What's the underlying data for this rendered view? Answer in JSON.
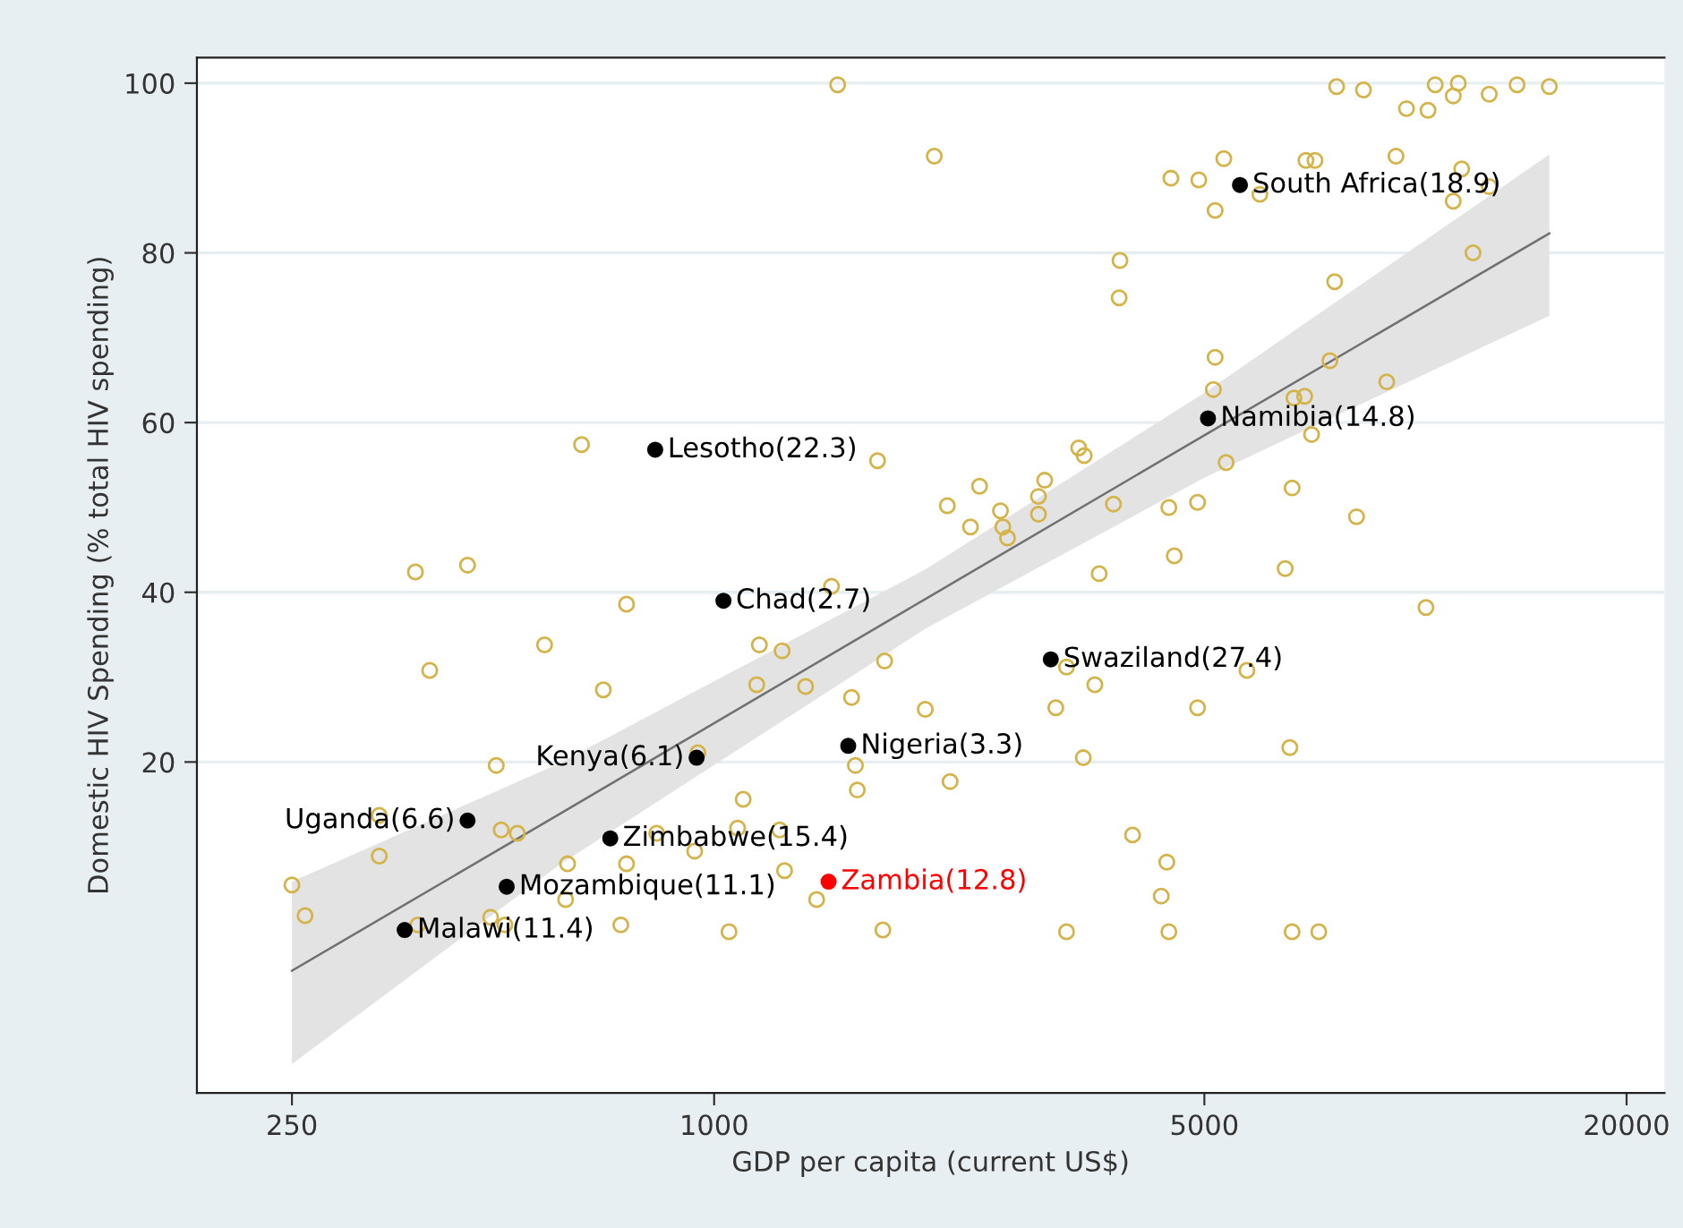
{
  "chart_data": {
    "type": "scatter",
    "xlabel": "GDP per capita (current US$)",
    "ylabel": "Domestic HIV Spending (% total HIV spending)",
    "log": "x",
    "xlim": [
      183,
      22650
    ],
    "xticks": [
      250,
      1000,
      5000,
      20000
    ],
    "ylim": [
      -19,
      103
    ],
    "yticks": [
      20,
      40,
      60,
      80,
      100
    ],
    "grid": "y",
    "legend": false,
    "marker": "circle",
    "series": [
      {
        "color": "#d4b44a",
        "x": [
          1500,
          2060,
          647,
          1710,
          375,
          445,
          750,
          1470,
          7720,
          8430,
          10670,
          11510,
          11320,
          12740,
          13960,
          15520,
          9710,
          10420,
          5330,
          6980,
          7190,
          9380,
          4480,
          4910,
          5180,
          6000,
          11640,
          11320,
          12740,
          3790,
          3780,
          12080,
          7670,
          5180,
          5150,
          7550,
          9100,
          6710,
          6950,
          7110,
          5370,
          3310,
          3370,
          2390,
          2960,
          2150,
          2560,
          2900,
          2900,
          2320,
          2580,
          2620,
          3710,
          4450,
          4890,
          6670,
          8240,
          4530,
          6520,
          3540,
          10350,
          573,
          393,
          695,
          1160,
          1250,
          1150,
          1350,
          1750,
          1570,
          2000,
          948,
          489,
          1590,
          1600,
          1100,
          333,
          497,
          524,
          333,
          618,
          750,
          828,
          938,
          1080,
          1240,
          1260,
          1400,
          250,
          261,
          378,
          480,
          503,
          736,
          614,
          1050,
          1740,
          3180,
          3490,
          5750,
          3070,
          4890,
          3360,
          6620,
          2170,
          3950,
          4420,
          4340,
          3180,
          4450,
          6670,
          7280
        ],
        "values": [
          99.8,
          91.4,
          57.4,
          55.5,
          42.4,
          43.2,
          38.6,
          40.7,
          99.6,
          99.2,
          99.8,
          100,
          98.5,
          98.7,
          99.8,
          99.6,
          97.0,
          96.8,
          91.1,
          90.9,
          90.9,
          91.4,
          88.8,
          88.6,
          85.0,
          86.9,
          89.9,
          86.1,
          87.8,
          79.1,
          74.7,
          80.0,
          76.6,
          67.7,
          63.9,
          67.3,
          64.8,
          62.9,
          63.1,
          58.6,
          55.3,
          57.0,
          56.1,
          52.5,
          53.2,
          50.2,
          49.6,
          51.3,
          49.2,
          47.7,
          47.7,
          46.4,
          50.4,
          50.0,
          50.6,
          52.3,
          48.9,
          44.3,
          42.8,
          42.2,
          38.2,
          33.8,
          30.8,
          28.5,
          33.8,
          33.1,
          29.1,
          28.9,
          31.9,
          27.6,
          26.2,
          21.1,
          19.6,
          19.6,
          16.7,
          15.6,
          13.7,
          12.0,
          11.6,
          8.9,
          8.0,
          8.0,
          11.6,
          9.5,
          12.2,
          12.0,
          7.2,
          3.8,
          5.5,
          1.9,
          0.8,
          1.7,
          0.8,
          0.8,
          3.8,
          0,
          0.2,
          31.2,
          29.1,
          30.8,
          26.4,
          26.4,
          20.5,
          21.7,
          17.7,
          11.4,
          8.2,
          4.2,
          0,
          0,
          0,
          0
        ]
      },
      {
        "type": "line",
        "marker": "none",
        "color": "#707070",
        "x": [
          250,
          600,
          2000,
          5000,
          15520
        ],
        "values": [
          -4.6,
          13.8,
          39.2,
          58.5,
          82.3
        ],
        "lower": [
          -15.6,
          7.8,
          35.7,
          53.5,
          72.6
        ],
        "upper": [
          5.9,
          19.8,
          42.7,
          63.5,
          91.6
        ]
      },
      {
        "color": "#000000",
        "x": [
          5620,
          5060,
          824,
          1031,
          3020,
          1553,
          944,
          445,
          711,
          506,
          362
        ],
        "values": [
          88.0,
          60.5,
          56.8,
          39.0,
          32.1,
          21.9,
          20.5,
          13.1,
          11.0,
          5.3,
          0.2
        ],
        "value_labels": [
          "South Africa(18.9)",
          "Namibia(14.8)",
          "Lesotho(22.3)",
          "Chad(2.7)",
          "Swaziland(27.4)",
          "Nigeria(3.3)",
          "Kenya(6.1)",
          "Uganda(6.6)",
          "Zimbabwe(15.4)",
          "Mozambique(11.1)",
          "Malawi(11.4)"
        ]
      },
      {
        "color": "#ff0000",
        "x": [
          1456
        ],
        "values": [
          5.9
        ],
        "value_labels": [
          "Zambia(12.8)"
        ]
      }
    ]
  }
}
